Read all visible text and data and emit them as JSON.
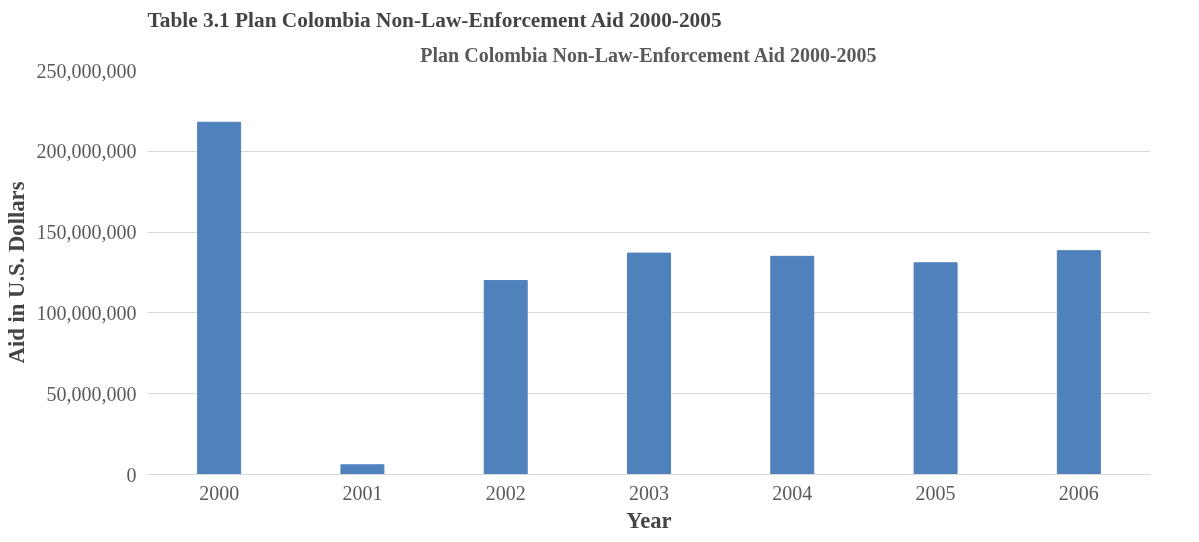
{
  "chart_data": {
    "type": "bar",
    "title": "Plan Colombia Non-Law-Enforcement Aid 2000-2005",
    "annotations": [
      "Table 3.1 Plan Colombia Non-Law-Enforcement Aid 2000-2005"
    ],
    "xlabel": "Year",
    "ylabel": "Aid in U.S. Dollars",
    "categories": [
      "2000",
      "2001",
      "2002",
      "2003",
      "2004",
      "2005",
      "2006"
    ],
    "values": [
      218000000,
      6000000,
      120000000,
      137000000,
      135000000,
      131000000,
      138500000
    ],
    "color": "#4f81bd",
    "ylim": [
      0,
      250000000
    ],
    "yticks": [
      {
        "value": 0,
        "label": "0"
      },
      {
        "value": 50000000,
        "label": "50,000,000"
      },
      {
        "value": 100000000,
        "label": "100,000,000"
      },
      {
        "value": 150000000,
        "label": "150,000,000"
      },
      {
        "value": 200000000,
        "label": "200,000,000"
      },
      {
        "value": 250000000,
        "label": "250,000,000"
      }
    ],
    "grid": "y"
  }
}
